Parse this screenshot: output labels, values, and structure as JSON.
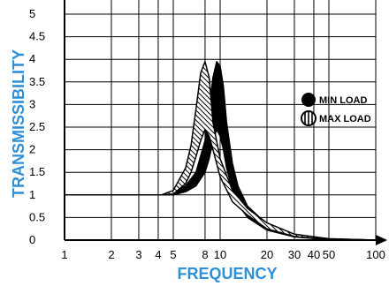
{
  "chart_data": {
    "type": "area",
    "title": "",
    "xlabel": "FREQUENCY",
    "ylabel": "TRANSMISSIBILITY",
    "x_scale": "log",
    "xlim": [
      1,
      100
    ],
    "ylim": [
      0,
      5
    ],
    "x_ticks": [
      1,
      2,
      3,
      4,
      5,
      8,
      10,
      20,
      30,
      40,
      50,
      100
    ],
    "y_ticks": [
      0,
      0.5,
      1,
      1.5,
      2,
      2.5,
      3,
      3.5,
      4,
      4.5,
      5
    ],
    "grid": true,
    "legend_position": "right",
    "series": [
      {
        "name": "MIN LOAD",
        "fill": "solid",
        "color": "#000000",
        "x": [
          1,
          4.2,
          5,
          6,
          7,
          8,
          8.5,
          9,
          9.5,
          10,
          10.5,
          11,
          12,
          13,
          15,
          20,
          30,
          50,
          100
        ],
        "upper": [
          1,
          1,
          1.05,
          1.2,
          1.5,
          2.2,
          2.9,
          3.6,
          3.95,
          3.85,
          3.4,
          2.6,
          1.7,
          1.2,
          0.75,
          0.35,
          0.12,
          0.03,
          0
        ],
        "lower": [
          1,
          1,
          1.0,
          1.07,
          1.2,
          1.5,
          1.8,
          2.2,
          2.45,
          2.3,
          2.0,
          1.6,
          1.1,
          0.8,
          0.5,
          0.22,
          0.07,
          0.01,
          0
        ]
      },
      {
        "name": "MAX LOAD",
        "fill": "striped",
        "color": "#000000",
        "x": [
          1,
          4.2,
          5,
          6,
          6.5,
          7,
          7.5,
          8,
          8.5,
          9,
          10,
          12,
          15,
          20,
          30,
          50,
          100
        ],
        "upper": [
          1,
          1,
          1.1,
          1.6,
          2.1,
          2.9,
          3.7,
          3.95,
          3.6,
          2.6,
          1.8,
          1.1,
          0.7,
          0.38,
          0.13,
          0.03,
          0
        ],
        "lower": [
          1,
          1,
          1.02,
          1.25,
          1.5,
          1.85,
          2.2,
          2.45,
          2.3,
          2.0,
          1.4,
          0.85,
          0.55,
          0.25,
          0.08,
          0.01,
          0
        ]
      }
    ]
  }
}
